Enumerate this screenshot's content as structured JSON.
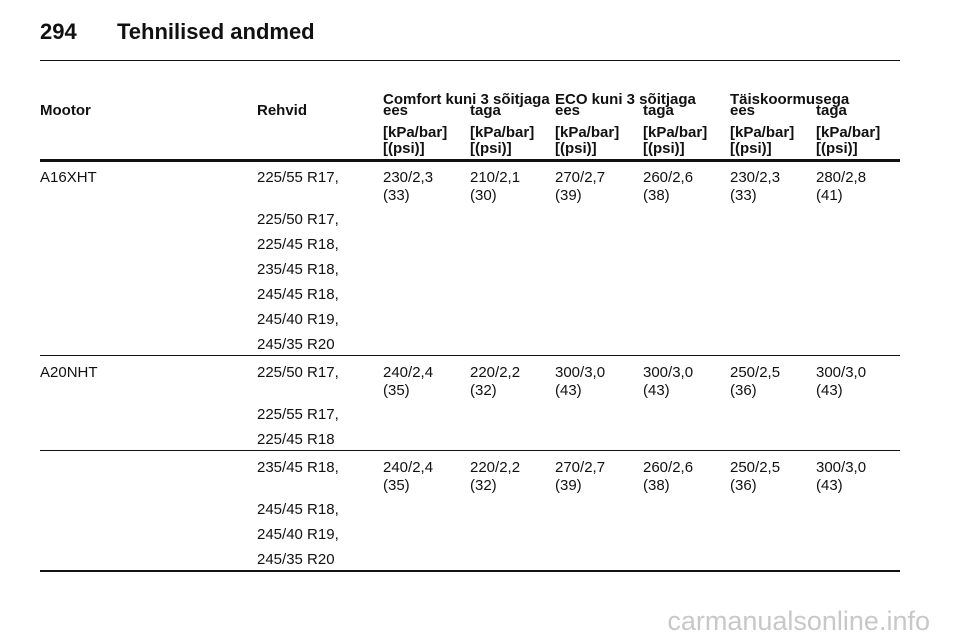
{
  "header": {
    "page_number": "294",
    "title": "Tehnilised andmed"
  },
  "table": {
    "groups": [
      "Comfort kuni 3 sõitjaga",
      "ECO kuni 3 sõitjaga",
      "Täiskoormusega"
    ],
    "columns": [
      "Mootor",
      "Rehvid",
      "ees",
      "taga",
      "ees",
      "taga",
      "ees",
      "taga"
    ],
    "units": [
      [
        "[kPa/bar]",
        "[(psi)]"
      ],
      [
        "[kPa/bar]",
        "[(psi)]"
      ],
      [
        "[kPa/bar]",
        "[(psi)]"
      ],
      [
        "[kPa/bar]",
        "[(psi)]"
      ],
      [
        "[kPa/bar]",
        "[(psi)]"
      ],
      [
        "[kPa/bar]",
        "[(psi)]"
      ]
    ],
    "sections": [
      {
        "engine": "A16XHT",
        "blocks": [
          {
            "tyres": [
              "225/55 R17,",
              "225/50 R17,",
              "225/45 R18,",
              "235/45 R18,",
              "245/45 R18,",
              "245/40 R19,",
              "245/35 R20"
            ],
            "pressures": [
              [
                "230/2,3",
                "(33)"
              ],
              [
                "210/2,1",
                "(30)"
              ],
              [
                "270/2,7",
                "(39)"
              ],
              [
                "260/2,6",
                "(38)"
              ],
              [
                "230/2,3",
                "(33)"
              ],
              [
                "280/2,8",
                "(41)"
              ]
            ]
          }
        ]
      },
      {
        "engine": "A20NHT",
        "blocks": [
          {
            "tyres": [
              "225/50 R17,",
              "225/55 R17,",
              "225/45 R18"
            ],
            "pressures": [
              [
                "240/2,4",
                "(35)"
              ],
              [
                "220/2,2",
                "(32)"
              ],
              [
                "300/3,0",
                "(43)"
              ],
              [
                "300/3,0",
                "(43)"
              ],
              [
                "250/2,5",
                "(36)"
              ],
              [
                "300/3,0",
                "(43)"
              ]
            ]
          },
          {
            "tyres": [
              "235/45 R18,",
              "245/45 R18,",
              "245/40 R19,",
              "245/35 R20"
            ],
            "pressures": [
              [
                "240/2,4",
                "(35)"
              ],
              [
                "220/2,2",
                "(32)"
              ],
              [
                "270/2,7",
                "(39)"
              ],
              [
                "260/2,6",
                "(38)"
              ],
              [
                "250/2,5",
                "(36)"
              ],
              [
                "300/3,0",
                "(43)"
              ]
            ]
          }
        ]
      }
    ]
  },
  "watermark": "carmanualsonline.info"
}
